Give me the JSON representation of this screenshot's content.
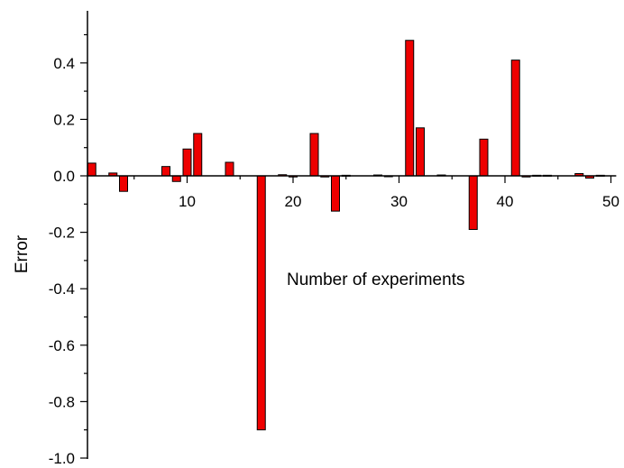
{
  "chart_data": {
    "type": "bar",
    "title": "",
    "xlabel": "Number of experiments",
    "ylabel": "Error",
    "xlim": [
      0,
      50.5
    ],
    "ylim": [
      -1.0,
      0.55
    ],
    "x_ticks": [
      10,
      20,
      30,
      40,
      50
    ],
    "y_ticks": [
      0.4,
      0.2,
      0.0,
      -0.2,
      -0.4,
      -0.6,
      -0.8,
      -1.0
    ],
    "y_tick_labels": [
      "0.4",
      "0.2",
      "0.0",
      "-0.2",
      "-0.4",
      "-0.6",
      "-0.8",
      "-1.0"
    ],
    "bar_color": "#ee0000",
    "grid": false,
    "legend": null,
    "x": [
      1,
      2,
      3,
      4,
      5,
      6,
      7,
      8,
      9,
      10,
      11,
      12,
      13,
      14,
      15,
      16,
      17,
      18,
      19,
      20,
      21,
      22,
      23,
      24,
      25,
      26,
      27,
      28,
      29,
      30,
      31,
      32,
      33,
      34,
      35,
      36,
      37,
      38,
      39,
      40,
      41,
      42,
      43,
      44,
      45,
      46,
      47,
      48,
      49,
      50
    ],
    "values": [
      0.045,
      0.0,
      0.01,
      -0.055,
      0.0,
      0.0,
      0.0,
      0.033,
      -0.02,
      0.095,
      0.15,
      0.0,
      0.0,
      0.048,
      0.0,
      0.0,
      -0.9,
      0.0,
      0.004,
      -0.004,
      0.0,
      0.15,
      -0.004,
      -0.125,
      0.002,
      0.0,
      0.0,
      0.003,
      -0.002,
      0.0,
      0.48,
      0.17,
      0.0,
      0.003,
      0.0,
      0.0,
      -0.19,
      0.13,
      0.0,
      0.0,
      0.41,
      -0.004,
      0.002,
      0.002,
      0.0,
      0.0,
      0.008,
      -0.008,
      0.002,
      0.0
    ]
  }
}
